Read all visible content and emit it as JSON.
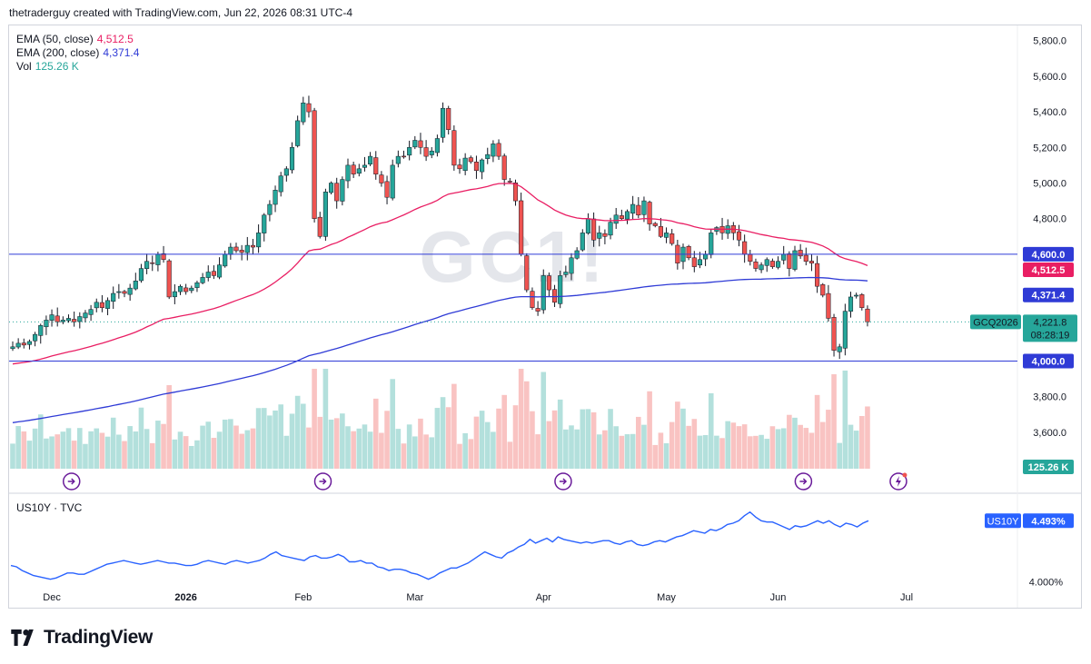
{
  "header": {
    "text": "thetraderguy created with TradingView.com, Jun 22, 2026 08:31 UTC-4"
  },
  "brand": {
    "name": "TradingView"
  },
  "watermark": {
    "text": "GC1!"
  },
  "legend": {
    "ema50": {
      "label": "EMA (50, close)",
      "value": "4,512.5",
      "color": "#e91e63"
    },
    "ema200": {
      "label": "EMA (200, close)",
      "value": "4,371.4",
      "color": "#2f3bd6"
    },
    "vol": {
      "label": "Vol",
      "value": "125.26 K",
      "color": "#26a69a"
    }
  },
  "pane2_legend": {
    "label": "US10Y · TVC"
  },
  "colors": {
    "up": "#26a69a",
    "down": "#ef5350",
    "hline": "#2f3bd6",
    "us10y": "#2962ff"
  },
  "chart_data": [
    {
      "type": "candlestick",
      "instrument": "GCQ2026",
      "y_axis": {
        "ticks": [
          "5,800.0",
          "5,600.0",
          "5,400.0",
          "5,200.0",
          "5,000.0",
          "4,800.0",
          "3,800.0",
          "3,600.0"
        ],
        "range": [
          3450,
          5900
        ]
      },
      "x_axis": {
        "ticks": [
          "Dec",
          "2026",
          "Feb",
          "Mar",
          "Apr",
          "May",
          "Jun",
          "Jul"
        ]
      },
      "horizontal_lines": [
        {
          "value": 4600,
          "label": "4,600.0"
        },
        {
          "value": 4000,
          "label": "4,000.0"
        }
      ],
      "labels": {
        "ema50": "4,512.5",
        "ema200": "4,371.4",
        "last_symbol": "GCQ2026",
        "last_price": "4,221.8",
        "countdown": "08:28:19",
        "volume": "125.26 K"
      },
      "close": [
        4080,
        4100,
        4090,
        4110,
        4150,
        4200,
        4230,
        4260,
        4220,
        4230,
        4240,
        4220,
        4250,
        4270,
        4290,
        4330,
        4300,
        4340,
        4380,
        4390,
        4380,
        4410,
        4450,
        4520,
        4560,
        4550,
        4600,
        4570,
        4360,
        4390,
        4420,
        4390,
        4410,
        4440,
        4470,
        4500,
        4480,
        4540,
        4600,
        4640,
        4620,
        4610,
        4650,
        4640,
        4720,
        4820,
        4880,
        4960,
        5040,
        5080,
        5200,
        5350,
        5450,
        5400,
        4800,
        4700,
        4950,
        5000,
        4900,
        5020,
        5100,
        5050,
        5080,
        5100,
        5150,
        5050,
        5000,
        4920,
        5100,
        5150,
        5150,
        5200,
        5240,
        5200,
        5150,
        5180,
        5250,
        5420,
        5300,
        5100,
        5080,
        5140,
        5120,
        5070,
        5130,
        5160,
        5220,
        5150,
        5020,
        5010,
        4900,
        4600,
        4400,
        4300,
        4280,
        4480,
        4400,
        4330,
        4480,
        4500,
        4580,
        4620,
        4720,
        4800,
        4680,
        4720,
        4700,
        4780,
        4820,
        4800,
        4840,
        4880,
        4820,
        4900,
        4770,
        4760,
        4700,
        4720,
        4660,
        4550,
        4640,
        4580,
        4530,
        4570,
        4600,
        4720,
        4750,
        4720,
        4760,
        4720,
        4680,
        4600,
        4560,
        4520,
        4540,
        4570,
        4530,
        4560,
        4600,
        4520,
        4620,
        4590,
        4560,
        4550,
        4420,
        4370,
        4240,
        4060,
        4080,
        4280,
        4360,
        4370,
        4300,
        4220
      ]
    },
    {
      "type": "line",
      "name": "US10Y",
      "value_label": "4.493%",
      "y_ticks": [
        "4.000%"
      ],
      "range": [
        3.93,
        4.66
      ],
      "values": [
        4.13,
        4.12,
        4.09,
        4.07,
        4.05,
        4.04,
        4.03,
        4.02,
        4.03,
        4.05,
        4.07,
        4.07,
        4.06,
        4.06,
        4.08,
        4.1,
        4.12,
        4.14,
        4.15,
        4.16,
        4.17,
        4.16,
        4.15,
        4.14,
        4.15,
        4.16,
        4.17,
        4.16,
        4.15,
        4.15,
        4.14,
        4.13,
        4.13,
        4.14,
        4.16,
        4.17,
        4.16,
        4.15,
        4.14,
        4.16,
        4.17,
        4.16,
        4.15,
        4.16,
        4.17,
        4.19,
        4.22,
        4.24,
        4.21,
        4.2,
        4.19,
        4.18,
        4.17,
        4.2,
        4.21,
        4.19,
        4.19,
        4.2,
        4.22,
        4.2,
        4.16,
        4.16,
        4.17,
        4.15,
        4.15,
        4.12,
        4.11,
        4.09,
        4.1,
        4.1,
        4.09,
        4.07,
        4.06,
        4.04,
        4.02,
        4.04,
        4.07,
        4.09,
        4.11,
        4.11,
        4.13,
        4.15,
        4.18,
        4.21,
        4.24,
        4.22,
        4.2,
        4.19,
        4.23,
        4.25,
        4.28,
        4.3,
        4.34,
        4.31,
        4.33,
        4.35,
        4.32,
        4.36,
        4.34,
        4.33,
        4.32,
        4.31,
        4.32,
        4.31,
        4.32,
        4.33,
        4.33,
        4.31,
        4.3,
        4.32,
        4.33,
        4.3,
        4.29,
        4.3,
        4.32,
        4.33,
        4.32,
        4.34,
        4.36,
        4.37,
        4.39,
        4.41,
        4.4,
        4.39,
        4.42,
        4.41,
        4.43,
        4.46,
        4.47,
        4.49,
        4.53,
        4.56,
        4.52,
        4.49,
        4.48,
        4.48,
        4.46,
        4.44,
        4.42,
        4.45,
        4.44,
        4.45,
        4.47,
        4.49,
        4.47,
        4.49,
        4.46,
        4.44,
        4.47,
        4.46,
        4.44,
        4.47,
        4.49
      ]
    }
  ]
}
